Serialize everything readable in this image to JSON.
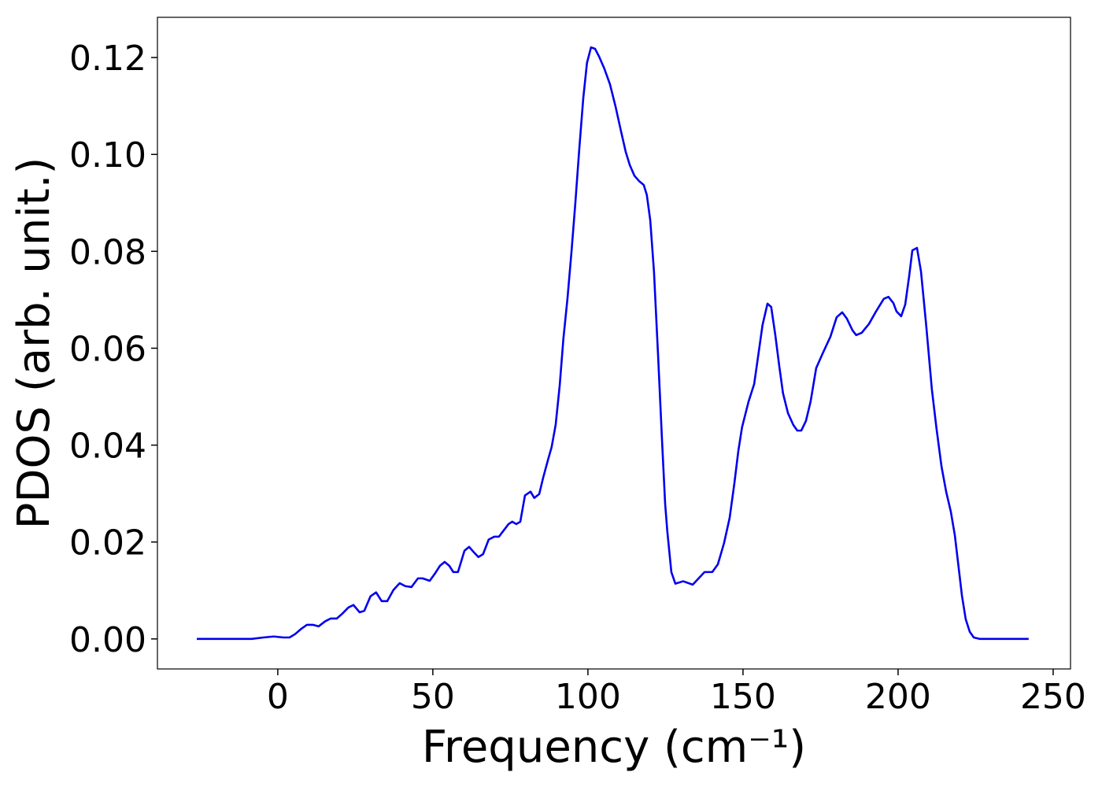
{
  "chart_data": {
    "type": "line",
    "xlabel": "Frequency (cm⁻¹)",
    "ylabel": "PDOS (arb. unit.)",
    "color": "#0000ee",
    "xlim": [
      -38.8,
      255.6
    ],
    "ylim": [
      -0.0062,
      0.1283
    ],
    "xticks": [
      0,
      50,
      100,
      150,
      200,
      250
    ],
    "yticks": [
      {
        "value": 0,
        "label": "0.00"
      },
      {
        "value": 0.02,
        "label": "0.02"
      },
      {
        "value": 0.04,
        "label": "0.04"
      },
      {
        "value": 0.06,
        "label": "0.06"
      },
      {
        "value": 0.08,
        "label": "0.08"
      },
      {
        "value": 0.1,
        "label": "0.10"
      },
      {
        "value": 0.12,
        "label": "0.12"
      }
    ],
    "x": [
      -26.1,
      -8.4,
      -4.6,
      -1.3,
      1.8,
      3.8,
      5.6,
      7.6,
      9.4,
      11.4,
      13.2,
      15.2,
      17.0,
      19.0,
      20.8,
      22.8,
      24.4,
      26.4,
      27.9,
      29.9,
      31.7,
      33.5,
      35.3,
      37.3,
      39.3,
      41.1,
      43.1,
      45.2,
      46.7,
      49.0,
      50.8,
      52.3,
      53.8,
      55.3,
      56.6,
      58.1,
      60.2,
      61.7,
      63.2,
      64.7,
      66.2,
      68.0,
      69.8,
      71.3,
      73.1,
      74.4,
      75.6,
      76.9,
      78.2,
      79.7,
      81.5,
      82.7,
      84.3,
      85.5,
      87.1,
      88.3,
      89.6,
      90.9,
      92.1,
      93.4,
      94.7,
      95.9,
      97.2,
      98.5,
      99.7,
      101.0,
      102.3,
      103.6,
      105.3,
      107.1,
      108.9,
      110.7,
      112.2,
      113.5,
      115.0,
      116.5,
      118.0,
      119.0,
      120.1,
      121.3,
      122.6,
      123.9,
      124.9,
      125.6,
      126.9,
      128.2,
      130.7,
      133.8,
      137.6,
      140.1,
      141.9,
      143.9,
      145.7,
      147.2,
      148.5,
      149.7,
      151.8,
      153.6,
      154.8,
      156.3,
      157.9,
      159.1,
      160.4,
      161.7,
      162.9,
      164.5,
      166.2,
      167.5,
      168.8,
      170.3,
      171.8,
      173.6,
      175.6,
      178.2,
      180.2,
      182.0,
      183.5,
      185.3,
      186.5,
      188.3,
      190.6,
      192.9,
      195.4,
      196.9,
      198.5,
      199.5,
      201.0,
      202.3,
      203.6,
      204.6,
      206.1,
      207.4,
      209.1,
      210.9,
      212.4,
      214.0,
      215.5,
      217.0,
      218.3,
      219.5,
      220.6,
      221.8,
      223.1,
      224.4,
      226.4,
      242.1
    ],
    "values": [
      0,
      0,
      0.0003,
      0.0005,
      0.0003,
      0.0003,
      0.001,
      0.0021,
      0.0029,
      0.0029,
      0.0026,
      0.0036,
      0.0042,
      0.0042,
      0.0052,
      0.0065,
      0.007,
      0.0055,
      0.0058,
      0.0088,
      0.0096,
      0.0078,
      0.0078,
      0.0101,
      0.0115,
      0.0109,
      0.0107,
      0.0125,
      0.0125,
      0.012,
      0.0136,
      0.0151,
      0.0159,
      0.0151,
      0.0138,
      0.0138,
      0.0182,
      0.019,
      0.0179,
      0.0169,
      0.0175,
      0.0205,
      0.0211,
      0.0211,
      0.0226,
      0.0237,
      0.0242,
      0.0237,
      0.0242,
      0.0296,
      0.0304,
      0.0291,
      0.0299,
      0.0331,
      0.0369,
      0.0396,
      0.0442,
      0.0523,
      0.062,
      0.0702,
      0.0799,
      0.0896,
      0.101,
      0.1116,
      0.1189,
      0.1221,
      0.1218,
      0.1202,
      0.1177,
      0.1145,
      0.1099,
      0.1047,
      0.1005,
      0.0978,
      0.0956,
      0.0945,
      0.0937,
      0.0916,
      0.0864,
      0.0758,
      0.0588,
      0.0409,
      0.0279,
      0.0222,
      0.0138,
      0.0114,
      0.0119,
      0.0112,
      0.0138,
      0.0138,
      0.0154,
      0.0198,
      0.025,
      0.032,
      0.0388,
      0.0437,
      0.049,
      0.0526,
      0.058,
      0.0648,
      0.0692,
      0.0685,
      0.0628,
      0.0563,
      0.0507,
      0.0466,
      0.0442,
      0.043,
      0.043,
      0.045,
      0.049,
      0.0559,
      0.0588,
      0.0624,
      0.0664,
      0.0674,
      0.0661,
      0.0637,
      0.0627,
      0.0632,
      0.065,
      0.0676,
      0.0702,
      0.0706,
      0.0693,
      0.0676,
      0.0666,
      0.069,
      0.075,
      0.0802,
      0.0807,
      0.0758,
      0.0645,
      0.0515,
      0.0434,
      0.0356,
      0.0304,
      0.0263,
      0.0214,
      0.0149,
      0.0089,
      0.0041,
      0.0015,
      0.0003,
      0,
      0
    ]
  }
}
